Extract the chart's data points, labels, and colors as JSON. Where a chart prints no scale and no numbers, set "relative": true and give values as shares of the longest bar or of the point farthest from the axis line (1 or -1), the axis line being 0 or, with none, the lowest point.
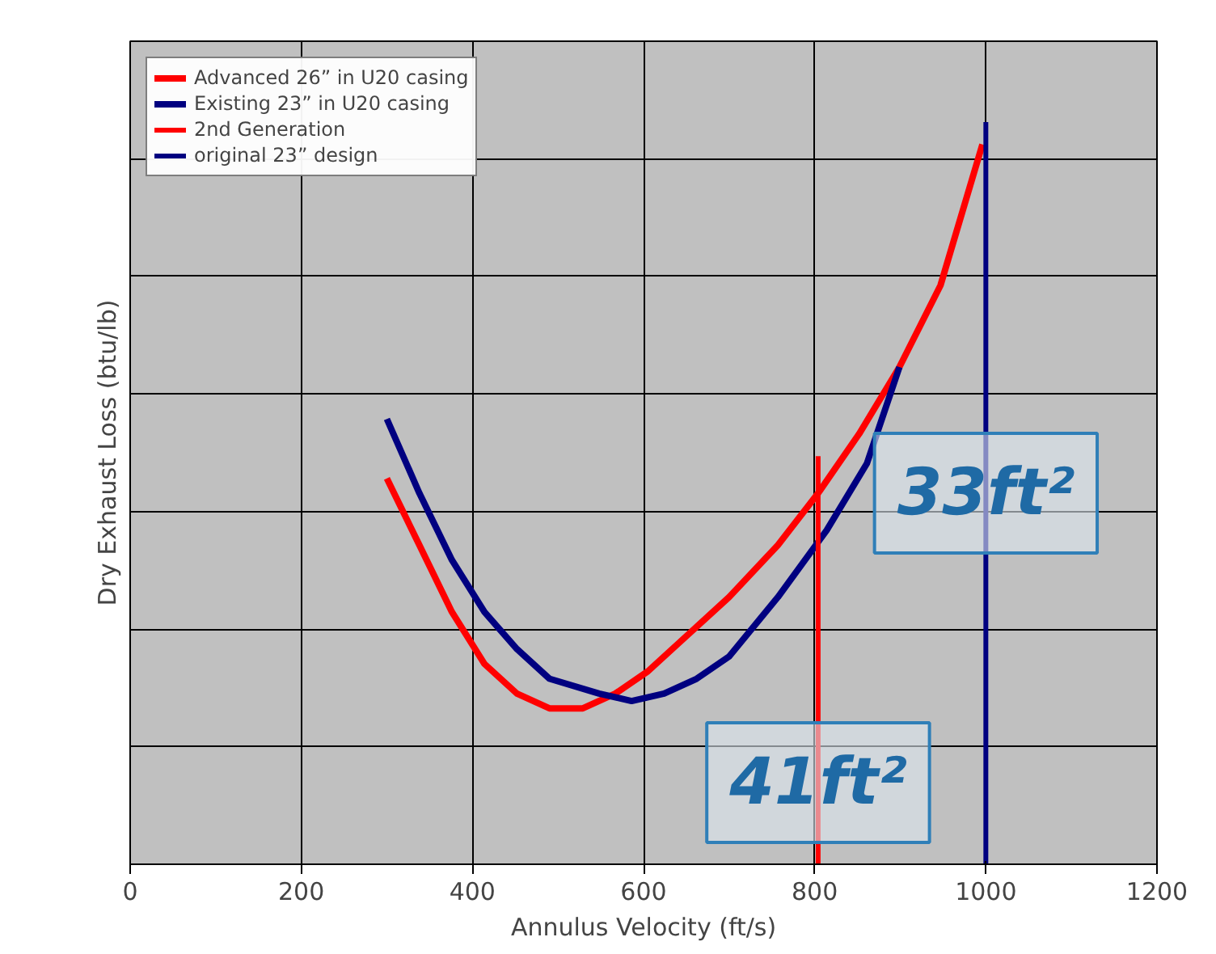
{
  "chart_data": {
    "type": "line",
    "relative": true,
    "xlabel": "Annulus Velocity (ft/s)",
    "ylabel": "Dry Exhaust Loss (btu/lb)",
    "xlim": [
      0,
      1200
    ],
    "xticks": [
      0,
      200,
      400,
      600,
      800,
      1000,
      1200
    ],
    "grid": true,
    "legend": "top left",
    "series": [
      {
        "name": "Advanced 26” in U20 casing",
        "color": "#ff0000",
        "x": [
          300,
          338,
          376,
          414,
          452,
          490,
          529,
          567,
          605,
          643,
          700,
          757,
          804,
          852,
          899,
          947,
          996
        ],
        "values": [
          0.52,
          0.43,
          0.34,
          0.27,
          0.23,
          0.21,
          0.21,
          0.23,
          0.26,
          0.3,
          0.36,
          0.43,
          0.5,
          0.58,
          0.67,
          0.78,
          0.97
        ]
      },
      {
        "name": "Existing 23” in U20 casing",
        "color": "#000080",
        "x": [
          300,
          338,
          376,
          414,
          452,
          490,
          548,
          586,
          624,
          662,
          700,
          757,
          814,
          861,
          899
        ],
        "values": [
          0.6,
          0.5,
          0.41,
          0.34,
          0.29,
          0.25,
          0.23,
          0.22,
          0.23,
          0.25,
          0.28,
          0.36,
          0.45,
          0.54,
          0.67
        ]
      },
      {
        "name": "2nd Generation",
        "color": "#ff0000",
        "x": [
          804,
          804
        ],
        "values": [
          0,
          0.55
        ]
      },
      {
        "name": "original 23” design",
        "color": "#000080",
        "x": [
          1000,
          1000
        ],
        "values": [
          0,
          1
        ]
      }
    ],
    "annotations": [
      {
        "text": "33ft²",
        "x": 1000,
        "y": 0.5
      },
      {
        "text": "41ft²",
        "x": 804,
        "y": 0.11
      }
    ]
  }
}
